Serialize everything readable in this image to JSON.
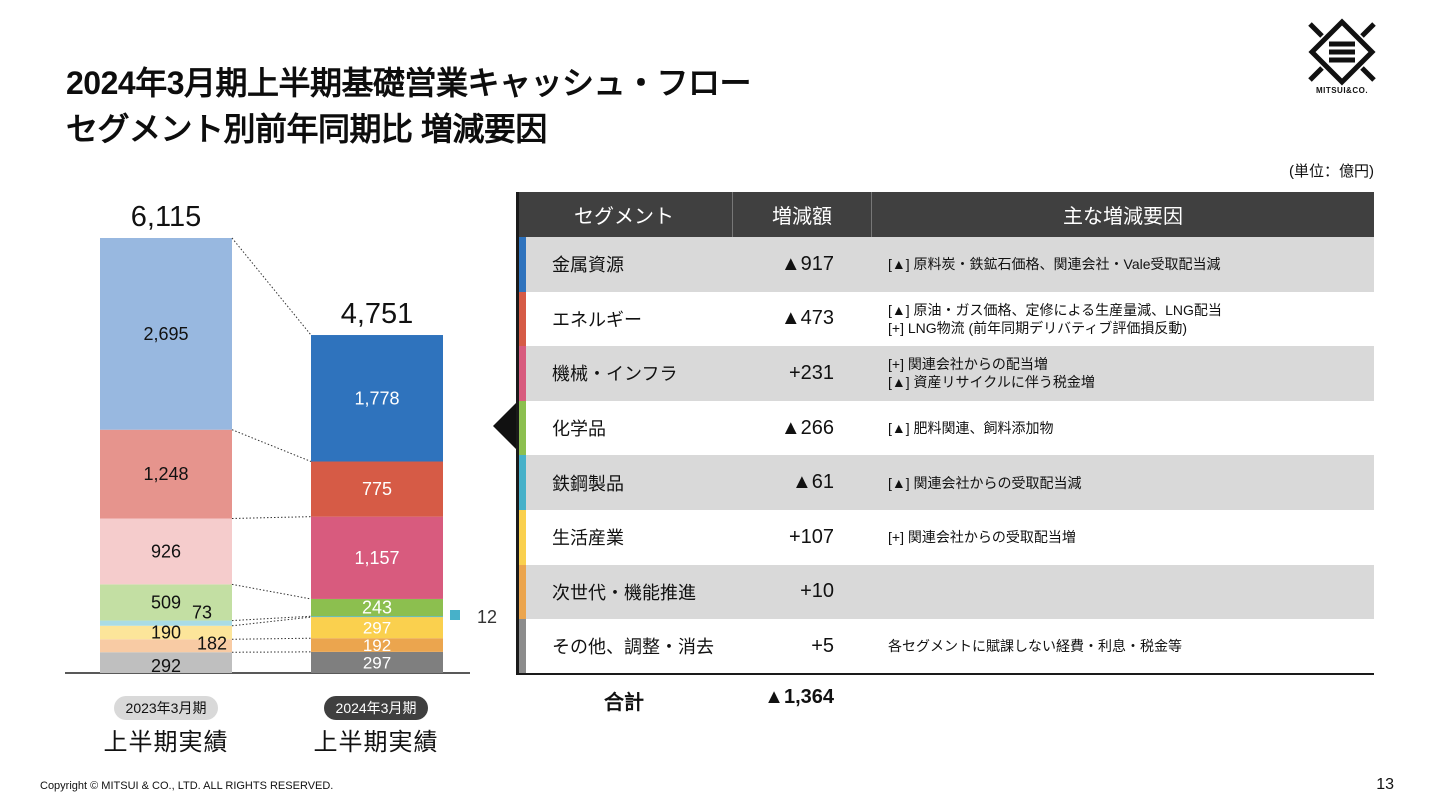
{
  "title_line1": "2024年3月期上半期基礎営業キャッシュ・フロー",
  "title_line2": "セグメント別前年同期比 増減要因",
  "logo_text": "MITSUI&CO.",
  "unit": "(単位：億円)",
  "chart_data": {
    "type": "bar",
    "stacked": true,
    "categories": [
      "2023年3月期 上半期実績",
      "2024年3月期 上半期実績"
    ],
    "totals": [
      "6,115",
      "4,751"
    ],
    "series": [
      {
        "name": "その他、調整・消去",
        "values": [
          292,
          297
        ],
        "labels": [
          "292",
          "297"
        ],
        "colors": [
          "#bfbfbf",
          "#7f7f7f"
        ]
      },
      {
        "name": "次世代・機能推進",
        "values": [
          182,
          192
        ],
        "labels": [
          "182",
          "192"
        ],
        "colors": [
          "#f8cba4",
          "#eba54e"
        ]
      },
      {
        "name": "生活産業",
        "values": [
          190,
          297
        ],
        "labels": [
          "190",
          "297"
        ],
        "colors": [
          "#fce59a",
          "#fad04e"
        ]
      },
      {
        "name": "鉄鋼製品",
        "values": [
          73,
          12
        ],
        "labels": [
          "73",
          "12"
        ],
        "colors": [
          "#a9dce6",
          "#47b1c9"
        ]
      },
      {
        "name": "化学品",
        "values": [
          509,
          243
        ],
        "labels": [
          "509",
          "243"
        ],
        "colors": [
          "#c3dfa3",
          "#8cbf4f"
        ]
      },
      {
        "name": "機械・インフラ",
        "values": [
          926,
          1157
        ],
        "labels": [
          "926",
          "1,157"
        ],
        "colors": [
          "#f5cccc",
          "#d85b7e"
        ]
      },
      {
        "name": "エネルギー",
        "values": [
          1248,
          775
        ],
        "labels": [
          "1,248",
          "775"
        ],
        "colors": [
          "#e6948d",
          "#d65b46"
        ]
      },
      {
        "name": "金属資源",
        "values": [
          2695,
          1778
        ],
        "labels": [
          "2,695",
          "1,778"
        ],
        "colors": [
          "#98b8e0",
          "#2f73bd"
        ]
      }
    ]
  },
  "period_left": {
    "pill": "2023年3月期",
    "label": "上半期実績"
  },
  "period_right": {
    "pill": "2024年3月期",
    "label": "上半期実績"
  },
  "table": {
    "headers": [
      "セグメント",
      "増減額",
      "主な増減要因"
    ],
    "rows": [
      {
        "segment": "金属資源",
        "amount": "▲917",
        "color": "#2f73bd",
        "reasons": [
          "[▲] 原料炭・鉄鉱石価格、関連会社・Vale受取配当減"
        ]
      },
      {
        "segment": "エネルギー",
        "amount": "▲473",
        "color": "#d65b46",
        "reasons": [
          "[▲] 原油・ガス価格、定修による生産量減、LNG配当",
          "[+] LNG物流 (前年同期デリバティブ評価損反動)"
        ]
      },
      {
        "segment": "機械・インフラ",
        "amount": "+231",
        "color": "#d85b7e",
        "reasons": [
          "[+] 関連会社からの配当増",
          "[▲] 資産リサイクルに伴う税金増"
        ]
      },
      {
        "segment": "化学品",
        "amount": "▲266",
        "color": "#8cbf4f",
        "reasons": [
          "[▲] 肥料関連、飼料添加物"
        ]
      },
      {
        "segment": "鉄鋼製品",
        "amount": "▲61",
        "color": "#47b1c9",
        "reasons": [
          "[▲] 関連会社からの受取配当減"
        ]
      },
      {
        "segment": "生活産業",
        "amount": "+107",
        "color": "#fad04e",
        "reasons": [
          "[+] 関連会社からの受取配当増"
        ]
      },
      {
        "segment": "次世代・機能推進",
        "amount": "+10",
        "color": "#eba54e",
        "reasons": [
          ""
        ]
      },
      {
        "segment": "その他、調整・消去",
        "amount": "+5",
        "color": "#8c8c8c",
        "reasons": [
          "各セグメントに賦課しない経費・利息・税金等"
        ]
      }
    ],
    "total_label": "合計",
    "total_value": "▲1,364"
  },
  "footer": "Copyright © MITSUI & CO., LTD. ALL RIGHTS RESERVED.",
  "page_number": "13"
}
